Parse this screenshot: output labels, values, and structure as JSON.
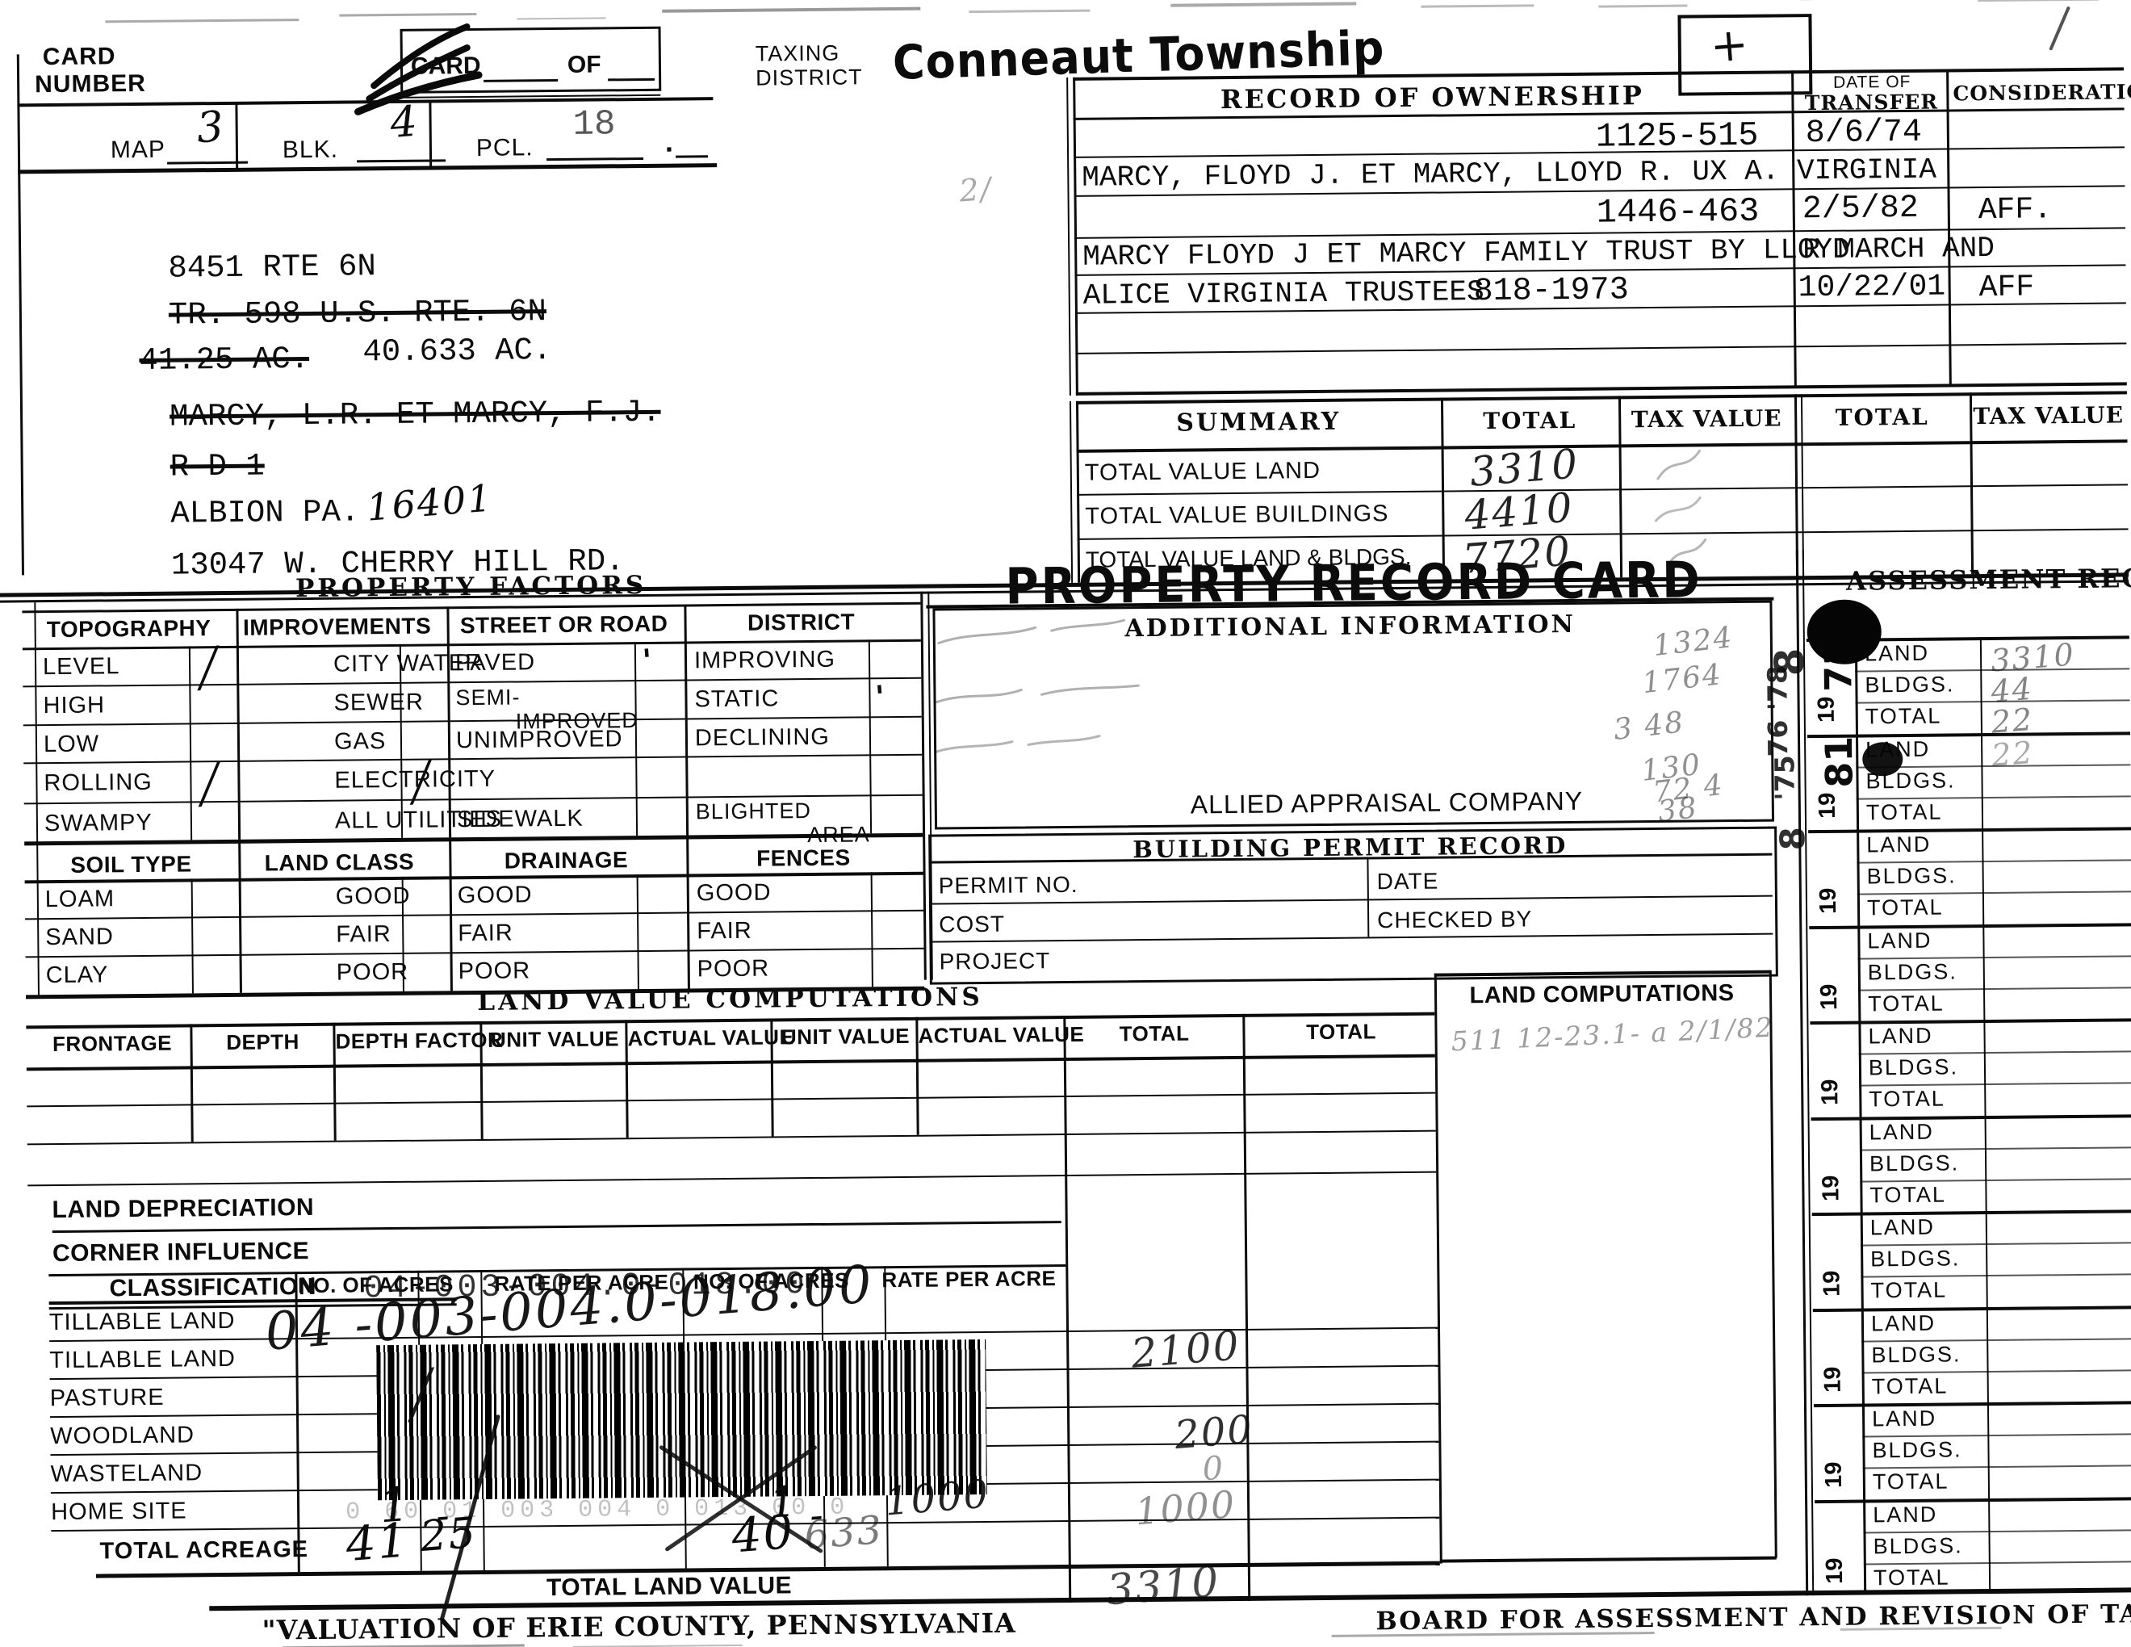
{
  "header": {
    "card_number_line1": "CARD",
    "card_number_line2": "NUMBER",
    "card_blank_label": "CARD",
    "of_label": "OF",
    "taxing_line1": "TAXING",
    "taxing_line2": "DISTRICT",
    "township": "Conneaut Township",
    "corner_mark": "+",
    "map_label": "MAP",
    "map_value": "3",
    "blk_label": "BLK.",
    "blk_value": "4",
    "pcl_label": "PCL.",
    "pcl_value": "18",
    "pcl_suffix": ".",
    "faint_note": "2/"
  },
  "address": {
    "lines": [
      {
        "text": "8451 RTE 6N",
        "struck": false
      },
      {
        "text": "TR. 598 U.S. RTE. 6N",
        "struck": true
      },
      {
        "text": "41.25 AC.",
        "struck": true,
        "after": "40.633 AC."
      },
      {
        "text": "MARCY, L.R. ET MARCY, F.J.",
        "struck": true
      },
      {
        "text": "R D 1",
        "struck": true
      },
      {
        "text": "ALBION PA.",
        "struck": false,
        "hw_after": "16401"
      },
      {
        "text": "13047 W. CHERRY HILL RD.",
        "struck": false
      }
    ]
  },
  "ownership": {
    "title": "RECORD OF OWNERSHIP",
    "date_line1": "DATE OF",
    "date_line2": "TRANSFER",
    "consideration_col_label": "CONSIDERATION",
    "rows": [
      {
        "name": "",
        "book_page": "1125-515",
        "date": "8/6/74",
        "consideration": ""
      },
      {
        "name": "MARCY, FLOYD J. ET MARCY, LLOYD R. UX A. VIRGINIA",
        "book_page": "",
        "date": "",
        "consideration": ""
      },
      {
        "name": "",
        "book_page": "1446-463",
        "date": "2/5/82",
        "consideration": "AFF."
      },
      {
        "name": "MARCY FLOYD J ET MARCY FAMILY TRUST BY LLOYD",
        "overflow": "R MARCH AND",
        "book_page": "",
        "date": "",
        "consideration": ""
      },
      {
        "name": "ALICE VIRGINIA TRUSTEES",
        "book_page": "818-1973",
        "date": "10/22/01",
        "consideration": "AFF"
      },
      {
        "name": "",
        "book_page": "",
        "date": "",
        "consideration": ""
      },
      {
        "name": "",
        "book_page": "",
        "date": "",
        "consideration": ""
      }
    ]
  },
  "summary": {
    "title": "SUMMARY",
    "col_labels": [
      "TOTAL",
      "TAX VALUE",
      "TOTAL",
      "TAX VALUE"
    ],
    "rows": [
      {
        "label": "TOTAL VALUE LAND",
        "total_hw": "3310"
      },
      {
        "label": "TOTAL VALUE BUILDINGS",
        "total_hw": "4410"
      },
      {
        "label": "TOTAL VALUE LAND & BLDGS.",
        "total_hw": "7720"
      }
    ]
  },
  "property_factors": {
    "title": "PROPERTY FACTORS",
    "columns": [
      {
        "header": "TOPOGRAPHY",
        "items": [
          "LEVEL",
          "HIGH",
          "LOW",
          "ROLLING",
          "SWAMPY"
        ],
        "checks": [
          "╱",
          "",
          "",
          "╱",
          ""
        ]
      },
      {
        "header": "IMPROVEMENTS",
        "items": [
          "CITY WATER",
          "SEWER",
          "GAS",
          "ELECTRICITY",
          "ALL UTILITIES"
        ],
        "checks": [
          "",
          "",
          "",
          "╱",
          ""
        ]
      },
      {
        "header": "STREET OR ROAD",
        "items": [
          "PAVED",
          "SEMI-IMPROVED",
          "UNIMPROVED",
          "",
          "SIDEWALK"
        ],
        "checks": [
          "'",
          "",
          "",
          "",
          ""
        ]
      },
      {
        "header": "DISTRICT",
        "items": [
          "IMPROVING",
          "STATIC",
          "DECLINING",
          "",
          "BLIGHTED AREA"
        ],
        "checks": [
          "",
          "'",
          "",
          "",
          ""
        ]
      }
    ]
  },
  "soil_factors": {
    "columns": [
      {
        "header": "SOIL TYPE",
        "items": [
          "LOAM",
          "SAND",
          "CLAY"
        ]
      },
      {
        "header": "LAND CLASS",
        "items": [
          "GOOD",
          "FAIR",
          "POOR"
        ]
      },
      {
        "header": "DRAINAGE",
        "items": [
          "GOOD",
          "FAIR",
          "POOR"
        ]
      },
      {
        "header": "FENCES",
        "items": [
          "GOOD",
          "FAIR",
          "POOR"
        ]
      }
    ]
  },
  "record_card": {
    "title": "PROPERTY RECORD CARD",
    "additional_info_label": "ADDITIONAL INFORMATION",
    "company": "ALLIED APPRAISAL COMPANY",
    "hw_numbers": [
      "1324",
      "1764",
      "3 48",
      "130",
      "72 4",
      "38"
    ],
    "margin_years": [
      "8",
      "76 '78",
      "'75",
      "8"
    ]
  },
  "building_permit": {
    "title": "BUILDING PERMIT RECORD",
    "permit_no_label": "PERMIT NO.",
    "date_label": "DATE",
    "cost_label": "COST",
    "checked_by_label": "CHECKED BY",
    "project_label": "PROJECT"
  },
  "land_value_computations": {
    "title": "LAND VALUE COMPUTATIONS",
    "headers": [
      "FRONTAGE",
      "DEPTH",
      "DEPTH FACTOR",
      "UNIT VALUE",
      "ACTUAL VALUE",
      "UNIT VALUE",
      "ACTUAL VALUE",
      "TOTAL",
      "TOTAL"
    ],
    "land_depreciation_label": "LAND DEPRECIATION",
    "corner_influence_label": "CORNER INFLUENCE"
  },
  "classification": {
    "header": "CLASSIFICATION",
    "acres_label_1": "NO. OF ACRES",
    "rate_label_1": "RATE PER ACRE",
    "acres_label_2": "NO. OF ACRES",
    "rate_label_2": "RATE PER ACRE",
    "rows": [
      {
        "label": "TILLABLE LAND"
      },
      {
        "label": "TILLABLE LAND",
        "total_hw": "2100"
      },
      {
        "label": "PASTURE",
        "check_hw": "╱"
      },
      {
        "label": "WOODLAND",
        "total_hw": "200"
      },
      {
        "label": "WASTELAND",
        "total_hw": "0"
      },
      {
        "label": "HOME SITE",
        "acres1_hw": "1",
        "dec1_hw": "-",
        "acres2_hw": "1",
        "dec2_hw": "-",
        "rate2_hw": "1000",
        "total_hw": "1000"
      },
      {
        "label": "TOTAL ACREAGE",
        "acres1_hw": "41",
        "dec1_hw": "25",
        "acres2_hw": "40",
        "dec2_hw": "633"
      }
    ],
    "total_land_value_label": "TOTAL LAND VALUE",
    "total_land_value_hw": "3310",
    "parcel_id_printed": "04-003-004.0-018.00",
    "parcel_id_handwritten": "04 -003-004.0-018.00",
    "parcel_id_dotmatrix": "0 60 01 003 004 0 013 00 0"
  },
  "land_computations": {
    "title": "LAND COMPUTATIONS",
    "hw_note": "511 12-23.1- a   2/1/82"
  },
  "assessment_record": {
    "title": "ASSESSMENT RECORD",
    "row_labels": [
      "LAND",
      "BLDGS.",
      "TOTAL"
    ],
    "year_prefix": "19",
    "groups": [
      {
        "year_hw": "73",
        "values_hw": [
          "3310",
          "44",
          "22"
        ]
      },
      {
        "year_hw": "81",
        "values_hw": [
          "22",
          "",
          ""
        ]
      },
      {
        "year_hw": "",
        "values_hw": [
          "",
          "",
          ""
        ]
      },
      {
        "year_hw": "",
        "values_hw": [
          "",
          "",
          ""
        ]
      },
      {
        "year_hw": "",
        "values_hw": [
          "",
          "",
          ""
        ]
      },
      {
        "year_hw": "",
        "values_hw": [
          "",
          "",
          ""
        ]
      },
      {
        "year_hw": "",
        "values_hw": [
          "",
          "",
          ""
        ]
      },
      {
        "year_hw": "",
        "values_hw": [
          "",
          "",
          ""
        ]
      },
      {
        "year_hw": "",
        "values_hw": [
          "",
          "",
          ""
        ]
      },
      {
        "year_hw": "",
        "values_hw": [
          "",
          "",
          ""
        ]
      }
    ]
  },
  "footer": {
    "left": "\"VALUATION OF ERIE COUNTY, PENNSYLVANIA",
    "right": "BOARD FOR ASSESSMENT AND REVISION OF TAXES"
  }
}
